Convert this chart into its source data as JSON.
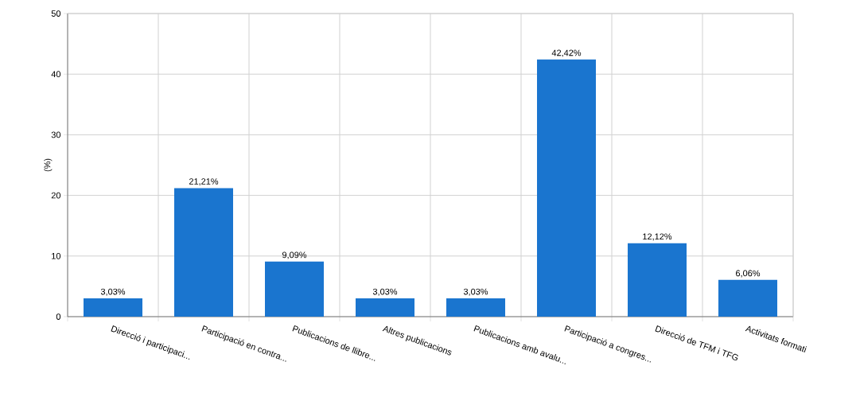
{
  "chart_data": {
    "type": "bar",
    "ylabel": "(%)",
    "categories": [
      "Direcció i participaci...",
      "Participació en contra...",
      "Publicacions de llibre...",
      "Altres publicacions",
      "Publicacions amb avalu...",
      "Participació a congres...",
      "Direcció de TFM i TFG",
      "Activitats formati"
    ],
    "values": [
      3.03,
      21.21,
      9.09,
      3.03,
      3.03,
      42.42,
      12.12,
      6.06
    ],
    "value_labels": [
      "3,03%",
      "21,21%",
      "9,09%",
      "3,03%",
      "3,03%",
      "42,42%",
      "12,12%",
      "6,06%"
    ],
    "color": "#1a75cf",
    "ylim": [
      0,
      50
    ],
    "yticks": [
      0,
      10,
      20,
      30,
      40,
      50
    ],
    "grid": true
  }
}
